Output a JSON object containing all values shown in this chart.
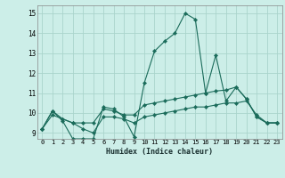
{
  "xlabel": "Humidex (Indice chaleur)",
  "bg_color": "#cceee8",
  "grid_color": "#aad4cc",
  "line_color": "#1a6b5a",
  "xlim": [
    -0.5,
    23.5
  ],
  "ylim": [
    8.7,
    15.4
  ],
  "yticks": [
    9,
    10,
    11,
    12,
    13,
    14,
    15
  ],
  "xticks": [
    0,
    1,
    2,
    3,
    4,
    5,
    6,
    7,
    8,
    9,
    10,
    11,
    12,
    13,
    14,
    15,
    16,
    17,
    18,
    19,
    20,
    21,
    22,
    23
  ],
  "series": [
    [
      9.2,
      10.1,
      9.6,
      8.7,
      8.7,
      8.7,
      10.3,
      10.2,
      9.8,
      8.8,
      11.5,
      13.1,
      13.6,
      14.0,
      15.0,
      14.7,
      11.0,
      12.9,
      10.6,
      11.3,
      10.7,
      9.8,
      9.5,
      9.5
    ],
    [
      9.2,
      10.1,
      9.7,
      9.5,
      9.5,
      9.5,
      10.2,
      10.1,
      9.9,
      9.9,
      10.4,
      10.5,
      10.6,
      10.7,
      10.8,
      10.9,
      11.0,
      11.1,
      11.15,
      11.3,
      10.7,
      9.8,
      9.5,
      9.5
    ],
    [
      9.2,
      9.9,
      9.7,
      9.5,
      9.2,
      9.0,
      9.8,
      9.8,
      9.7,
      9.5,
      9.8,
      9.9,
      10.0,
      10.1,
      10.2,
      10.3,
      10.3,
      10.4,
      10.5,
      10.5,
      10.6,
      9.9,
      9.5,
      9.5
    ]
  ]
}
